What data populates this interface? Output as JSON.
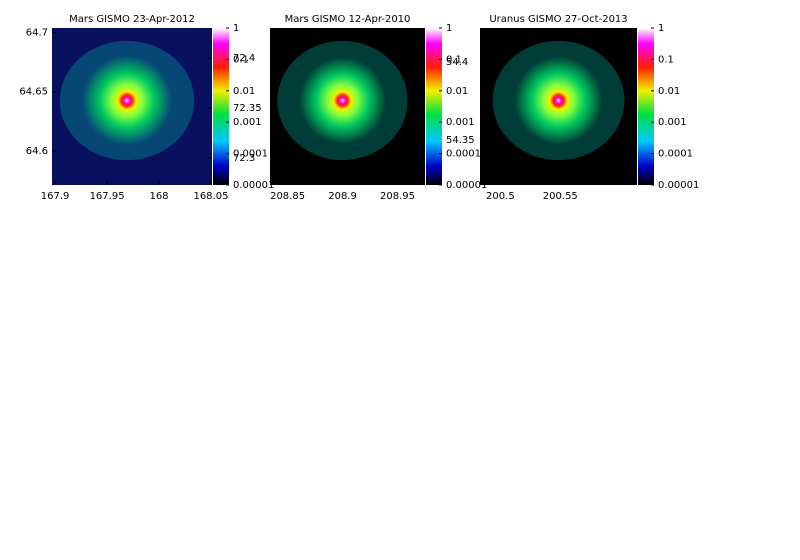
{
  "chart_data": [
    {
      "type": "heatmap",
      "title": "Mars GISMO 23-Apr-2012",
      "xlim": [
        167.897,
        168.051
      ],
      "xticks": [
        167.9,
        167.95,
        168,
        168.05
      ],
      "ylim": [
        64.571,
        64.704
      ],
      "yticks": [
        64.7,
        64.65,
        64.6
      ],
      "y2lim": [
        72.273,
        72.43
      ],
      "y2ticks": [
        72.4,
        72.35,
        72.3
      ],
      "colorbar": {
        "scale": "log",
        "lim": [
          1e-05,
          1
        ],
        "ticks": [
          1,
          0.1,
          0.01,
          0.001,
          0.0001,
          1e-05
        ]
      }
    },
    {
      "type": "heatmap",
      "title": "Mars GISMO 12-Apr-2010",
      "xlim": [
        208.834,
        208.975
      ],
      "xticks": [
        208.85,
        208.9,
        208.95
      ],
      "y2lim": [
        54.321,
        54.422
      ],
      "y2ticks": [
        54.4,
        54.35
      ],
      "colorbar": {
        "scale": "log",
        "lim": [
          1e-05,
          1
        ],
        "ticks": [
          1,
          0.1,
          0.01,
          0.001,
          0.0001,
          1e-05
        ]
      }
    },
    {
      "type": "heatmap",
      "title": "Uranus GISMO 27-Oct-2013",
      "xlim": [
        200.483,
        200.614
      ],
      "xticks": [
        200.5,
        200.55
      ],
      "colorbar": {
        "scale": "log",
        "lim": [
          1e-05,
          1
        ],
        "ticks": [
          1,
          0.1,
          0.01,
          0.001,
          0.0001,
          1e-05
        ]
      }
    }
  ]
}
